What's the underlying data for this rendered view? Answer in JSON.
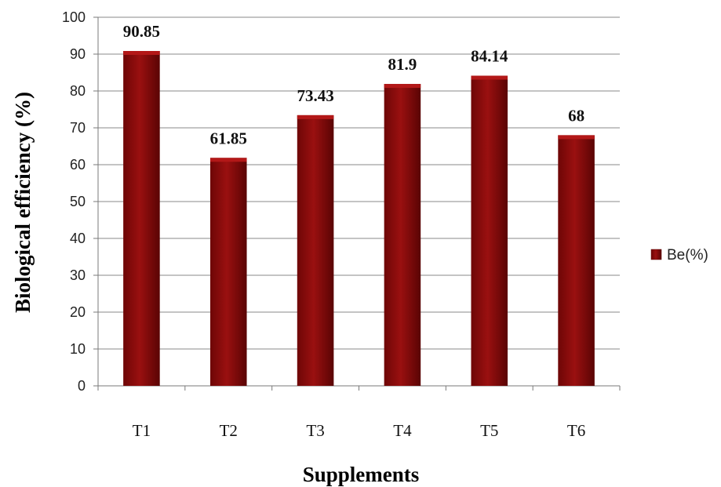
{
  "chart_data": {
    "type": "bar",
    "categories": [
      "T1",
      "T2",
      "T3",
      "T4",
      "T5",
      "T6"
    ],
    "series": [
      {
        "name": "Be(%)",
        "values": [
          90.85,
          61.85,
          73.43,
          81.9,
          84.14,
          68
        ],
        "color": "#8B0A0A"
      }
    ],
    "data_labels": [
      "90.85",
      "61.85",
      "73.43",
      "81.9",
      "84.14",
      "68"
    ],
    "xlabel": "Supplements",
    "ylabel": "Biological efficiency (%)",
    "ylim": [
      0,
      100
    ],
    "yticks": [
      "0",
      "10",
      "20",
      "30",
      "40",
      "50",
      "60",
      "70",
      "80",
      "90",
      "100"
    ],
    "grid": true,
    "legend": {
      "placement": "right",
      "entries": [
        "Be(%)"
      ]
    }
  }
}
